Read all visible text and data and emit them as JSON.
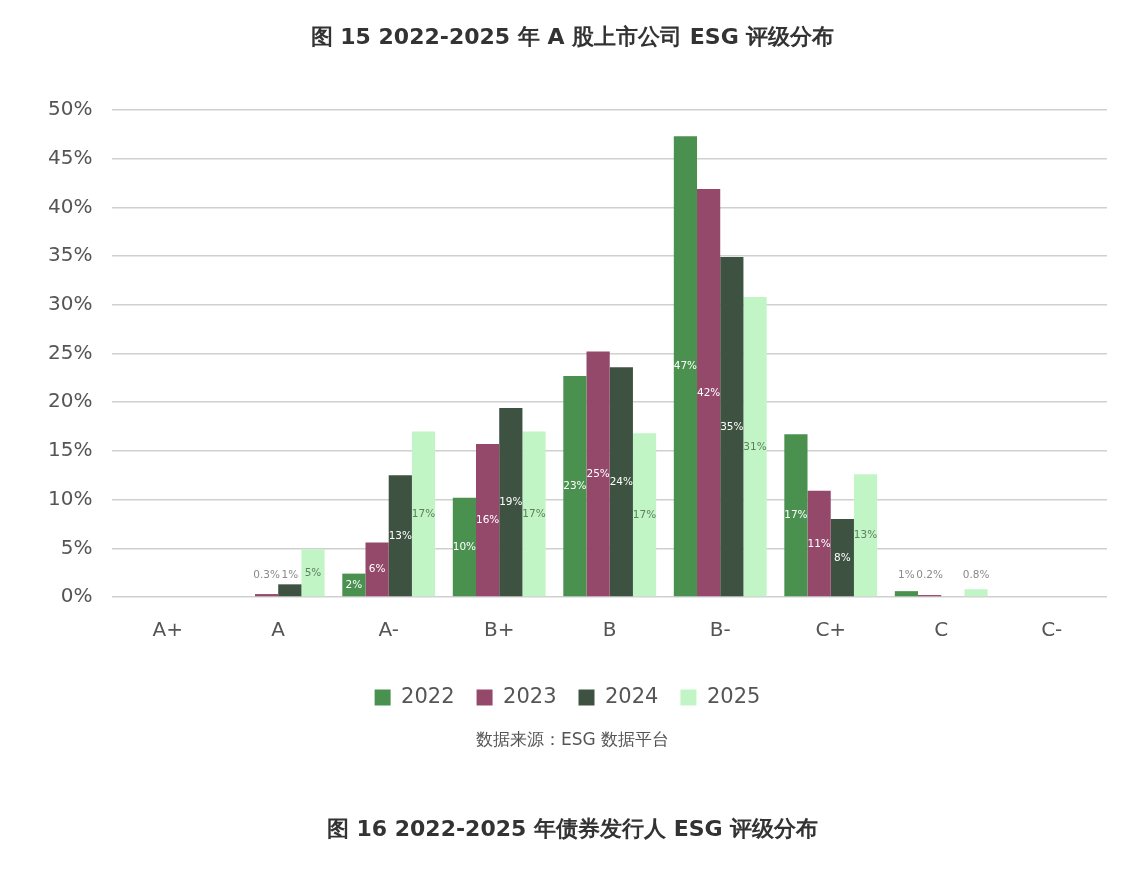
{
  "chart_data": {
    "type": "bar",
    "title": "图 15 2022-2025 年 A 股上市公司 ESG 评级分布",
    "categories": [
      "A+",
      "A",
      "A-",
      "B+",
      "B",
      "B-",
      "C+",
      "C",
      "C-"
    ],
    "series": [
      {
        "name": "2022",
        "color": "#4a9150",
        "values": [
          0,
          0,
          2.4,
          10.2,
          22.7,
          47.3,
          16.7,
          0.6,
          0
        ],
        "value_labels": [
          null,
          null,
          "2%",
          "10%",
          "23%",
          "47%",
          "17%",
          "1%",
          null
        ]
      },
      {
        "name": "2023",
        "color": "#94486a",
        "values": [
          0,
          0.3,
          5.6,
          15.7,
          25.2,
          41.9,
          10.9,
          0.2,
          0
        ],
        "value_labels": [
          null,
          "0.3%",
          "6%",
          "16%",
          "25%",
          "42%",
          "11%",
          "0.2%",
          null
        ]
      },
      {
        "name": "2024",
        "color": "#3d5240",
        "values": [
          0,
          1.3,
          12.5,
          19.4,
          23.6,
          34.9,
          8.0,
          null,
          0
        ],
        "value_labels": [
          null,
          "1%",
          "13%",
          "19%",
          "24%",
          "35%",
          "8%",
          null,
          null
        ]
      },
      {
        "name": "2025",
        "color": "#c2f5c5",
        "values": [
          0,
          4.9,
          17.0,
          17.0,
          16.8,
          30.8,
          12.6,
          0.8,
          0
        ],
        "value_labels": [
          null,
          "5%",
          "17%",
          "17%",
          "17%",
          "31%",
          "13%",
          "0.8%",
          null
        ]
      }
    ],
    "ylim": [
      0,
      50
    ],
    "yticks": [
      {
        "value": 0,
        "label": "0%"
      },
      {
        "value": 5,
        "label": "5%"
      },
      {
        "value": 10,
        "label": "10%"
      },
      {
        "value": 15,
        "label": "15%"
      },
      {
        "value": 20,
        "label": "20%"
      },
      {
        "value": 25,
        "label": "25%"
      },
      {
        "value": 30,
        "label": "30%"
      },
      {
        "value": 35,
        "label": "35%"
      },
      {
        "value": 40,
        "label": "40%"
      },
      {
        "value": 45,
        "label": "45%"
      },
      {
        "value": 50,
        "label": "50%"
      }
    ],
    "grid": "y",
    "legend": "bottom",
    "annotations": [
      "数据来源：ESG 数据平台",
      "图 16 2022-2025 年债券发行人 ESG 评级分布"
    ]
  }
}
